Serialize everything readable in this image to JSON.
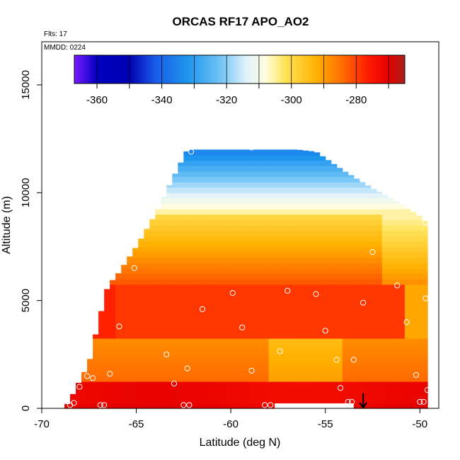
{
  "chart_data": {
    "type": "heatmap",
    "title": "ORCAS RF17 APO_AO2",
    "annotations": {
      "flights": "Flts: 17",
      "mmdd": "MMDD: 0224"
    },
    "xlabel": "Latitude (deg N)",
    "ylabel": "Altitude (m)",
    "xlim": [
      -70,
      -49
    ],
    "ylim": [
      0,
      17000
    ],
    "x_ticks": [
      -70,
      -65,
      -60,
      -55,
      -50
    ],
    "x_tick_labels": [
      "-70",
      "-65",
      "-60",
      "-55",
      "-50"
    ],
    "y_ticks": [
      0,
      5000,
      10000,
      15000
    ],
    "y_tick_labels": [
      "0",
      "5000",
      "10000",
      "15000"
    ],
    "colorbar": {
      "range": [
        -367,
        -265
      ],
      "ticks": [
        -360,
        -340,
        -320,
        -300,
        -280
      ],
      "tick_labels": [
        "-360",
        "-340",
        "-320",
        "-300",
        "-280"
      ],
      "stops": [
        {
          "v": -367,
          "c": "#7a1aff"
        },
        {
          "v": -360,
          "c": "#0000c0"
        },
        {
          "v": -350,
          "c": "#0000b0"
        },
        {
          "v": -342,
          "c": "#1a5ce8"
        },
        {
          "v": -332,
          "c": "#1e96ee"
        },
        {
          "v": -322,
          "c": "#6fc3f5"
        },
        {
          "v": -314,
          "c": "#dff2fb"
        },
        {
          "v": -308,
          "c": "#fffde0"
        },
        {
          "v": -302,
          "c": "#ffe45a"
        },
        {
          "v": -292,
          "c": "#ffb000"
        },
        {
          "v": -284,
          "c": "#ff6a00"
        },
        {
          "v": -276,
          "c": "#ff1800"
        },
        {
          "v": -270,
          "c": "#e40000"
        },
        {
          "v": -265,
          "c": "#a8201e"
        }
      ]
    },
    "field": {
      "lat_step": 0.3,
      "alt_step": 250,
      "top_envelope": [
        {
          "lat": -68.8,
          "alt": 0
        },
        {
          "lat": -68.5,
          "alt": 400
        },
        {
          "lat": -68.1,
          "alt": 1100
        },
        {
          "lat": -67.5,
          "alt": 2100
        },
        {
          "lat": -67.0,
          "alt": 4000
        },
        {
          "lat": -66.5,
          "alt": 5700
        },
        {
          "lat": -66.0,
          "alt": 6200
        },
        {
          "lat": -65.0,
          "alt": 7500
        },
        {
          "lat": -64.0,
          "alt": 9000
        },
        {
          "lat": -63.0,
          "alt": 10800
        },
        {
          "lat": -62.3,
          "alt": 12000
        },
        {
          "lat": -60.0,
          "alt": 12000
        },
        {
          "lat": -56.5,
          "alt": 12000
        },
        {
          "lat": -55.5,
          "alt": 11900
        },
        {
          "lat": -54.0,
          "alt": 11000
        },
        {
          "lat": -52.5,
          "alt": 10200
        },
        {
          "lat": -51.0,
          "alt": 9500
        },
        {
          "lat": -50.0,
          "alt": 8900
        },
        {
          "lat": -49.6,
          "alt": 8600
        }
      ],
      "bottom_gap": {
        "lat_start": -57.6,
        "lat_end": -53.6,
        "alt": 150
      }
    },
    "sample_points": [
      {
        "lat": -62.1,
        "alt": 11900
      },
      {
        "lat": -58.9,
        "alt": 12100
      },
      {
        "lat": -55.9,
        "alt": 12200
      },
      {
        "lat": -52.5,
        "alt": 7250
      },
      {
        "lat": -49.7,
        "alt": 8600
      },
      {
        "lat": -65.1,
        "alt": 6500
      },
      {
        "lat": -66.8,
        "alt": 5650
      },
      {
        "lat": -59.9,
        "alt": 5350
      },
      {
        "lat": -57.0,
        "alt": 5450
      },
      {
        "lat": -55.5,
        "alt": 5300
      },
      {
        "lat": -51.2,
        "alt": 5700
      },
      {
        "lat": -53.0,
        "alt": 4900
      },
      {
        "lat": -49.7,
        "alt": 5100
      },
      {
        "lat": -61.5,
        "alt": 4600
      },
      {
        "lat": -67.2,
        "alt": 3800
      },
      {
        "lat": -65.9,
        "alt": 3800
      },
      {
        "lat": -59.4,
        "alt": 3750
      },
      {
        "lat": -55.0,
        "alt": 3600
      },
      {
        "lat": -50.7,
        "alt": 4000
      },
      {
        "lat": -67.6,
        "alt": 2550
      },
      {
        "lat": -63.4,
        "alt": 2500
      },
      {
        "lat": -57.4,
        "alt": 2650
      },
      {
        "lat": -54.4,
        "alt": 2250
      },
      {
        "lat": -53.5,
        "alt": 2250
      },
      {
        "lat": -62.3,
        "alt": 1850
      },
      {
        "lat": -58.9,
        "alt": 1750
      },
      {
        "lat": -66.4,
        "alt": 1600
      },
      {
        "lat": -67.6,
        "alt": 1500
      },
      {
        "lat": -67.3,
        "alt": 1400
      },
      {
        "lat": -50.2,
        "alt": 1550
      },
      {
        "lat": -68.0,
        "alt": 1000
      },
      {
        "lat": -63.0,
        "alt": 1150
      },
      {
        "lat": -54.2,
        "alt": 950
      },
      {
        "lat": -49.6,
        "alt": 850
      },
      {
        "lat": -68.3,
        "alt": 250
      },
      {
        "lat": -68.5,
        "alt": 150
      },
      {
        "lat": -66.9,
        "alt": 150
      },
      {
        "lat": -66.7,
        "alt": 150
      },
      {
        "lat": -62.5,
        "alt": 150
      },
      {
        "lat": -62.2,
        "alt": 150
      },
      {
        "lat": -58.2,
        "alt": 150
      },
      {
        "lat": -57.9,
        "alt": 150
      },
      {
        "lat": -53.8,
        "alt": 300
      },
      {
        "lat": -53.6,
        "alt": 300
      },
      {
        "lat": -50.0,
        "alt": 300
      },
      {
        "lat": -49.8,
        "alt": 300
      }
    ],
    "marker": {
      "type": "down-arrow",
      "lat": -53.0,
      "alt_top": 700,
      "alt_bottom": 0
    },
    "grid": false,
    "legend": "none"
  }
}
